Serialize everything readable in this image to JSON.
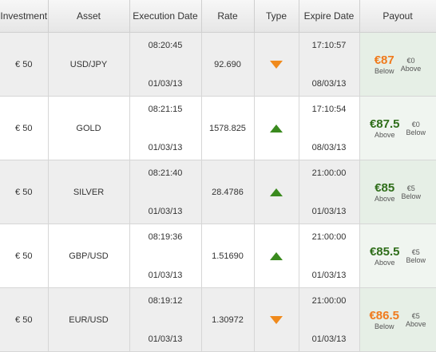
{
  "headers": {
    "investment": "Investment",
    "asset": "Asset",
    "execution_date": "Execution Date",
    "rate": "Rate",
    "type": "Type",
    "expire_date": "Expire Date",
    "payout": "Payout"
  },
  "rows": [
    {
      "investment": "€ 50",
      "asset": "USD/JPY",
      "exec_time": "08:20:45",
      "exec_date": "01/03/13",
      "rate": "92.690",
      "type": "down",
      "expire_time": "17:10:57",
      "expire_date": "08/03/13",
      "payout": "€87",
      "payout_label": "Below",
      "alt": "€0",
      "alt_label": "Above",
      "payout_color": "orange"
    },
    {
      "investment": "€ 50",
      "asset": "GOLD",
      "exec_time": "08:21:15",
      "exec_date": "01/03/13",
      "rate": "1578.825",
      "type": "up",
      "expire_time": "17:10:54",
      "expire_date": "08/03/13",
      "payout": "€87.5",
      "payout_label": "Above",
      "alt": "€0",
      "alt_label": "Below",
      "payout_color": "green"
    },
    {
      "investment": "€ 50",
      "asset": "SILVER",
      "exec_time": "08:21:40",
      "exec_date": "01/03/13",
      "rate": "28.4786",
      "type": "up",
      "expire_time": "21:00:00",
      "expire_date": "01/03/13",
      "payout": "€85",
      "payout_label": "Above",
      "alt": "€5",
      "alt_label": "Below",
      "payout_color": "green"
    },
    {
      "investment": "€ 50",
      "asset": "GBP/USD",
      "exec_time": "08:19:36",
      "exec_date": "01/03/13",
      "rate": "1.51690",
      "type": "up",
      "expire_time": "21:00:00",
      "expire_date": "01/03/13",
      "payout": "€85.5",
      "payout_label": "Above",
      "alt": "€5",
      "alt_label": "Below",
      "payout_color": "green"
    },
    {
      "investment": "€ 50",
      "asset": "EUR/USD",
      "exec_time": "08:19:12",
      "exec_date": "01/03/13",
      "rate": "1.30972",
      "type": "down",
      "expire_time": "21:00:00",
      "expire_date": "01/03/13",
      "payout": "€86.5",
      "payout_label": "Below",
      "alt": "€5",
      "alt_label": "Above",
      "payout_color": "orange"
    }
  ],
  "colors": {
    "up": "#3a8a1e",
    "down": "#f08a1c",
    "orange": "#f07a1c",
    "green": "#2f6e1a"
  },
  "icons": {
    "up": "triangle-up-icon",
    "down": "triangle-down-icon"
  }
}
